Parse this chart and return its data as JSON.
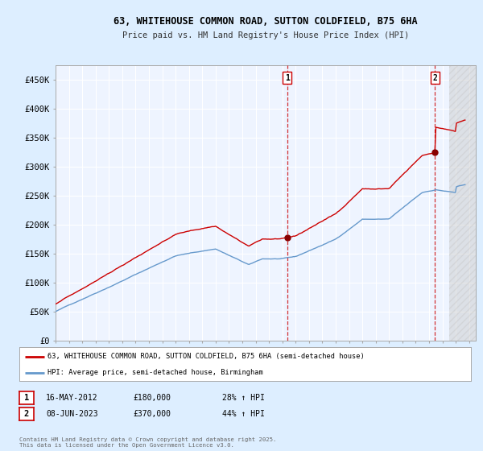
{
  "title1": "63, WHITEHOUSE COMMON ROAD, SUTTON COLDFIELD, B75 6HA",
  "title2": "Price paid vs. HM Land Registry's House Price Index (HPI)",
  "legend_line1": "63, WHITEHOUSE COMMON ROAD, SUTTON COLDFIELD, B75 6HA (semi-detached house)",
  "legend_line2": "HPI: Average price, semi-detached house, Birmingham",
  "annotation1": {
    "label": "1",
    "date": "16-MAY-2012",
    "price": "£180,000",
    "hpi": "28% ↑ HPI",
    "x_year": 2012.37,
    "y_val": 180000
  },
  "annotation2": {
    "label": "2",
    "date": "08-JUN-2023",
    "price": "£370,000",
    "hpi": "44% ↑ HPI",
    "x_year": 2023.44,
    "y_val": 370000
  },
  "red_line_color": "#cc0000",
  "blue_line_color": "#6699cc",
  "background_color": "#ddeeff",
  "plot_bg_color": "#ddeeff",
  "inner_bg_color": "#eef4ff",
  "grid_color": "#ffffff",
  "copyright_text": "Contains HM Land Registry data © Crown copyright and database right 2025.\nThis data is licensed under the Open Government Licence v3.0.",
  "ylim": [
    0,
    475000
  ],
  "xlim_start": 1995,
  "xlim_end": 2026.5,
  "yticks": [
    0,
    50000,
    100000,
    150000,
    200000,
    250000,
    300000,
    350000,
    400000,
    450000
  ],
  "ytick_labels": [
    "£0",
    "£50K",
    "£100K",
    "£150K",
    "£200K",
    "£250K",
    "£300K",
    "£350K",
    "£400K",
    "£450K"
  ],
  "hatch_start": 2024.5
}
